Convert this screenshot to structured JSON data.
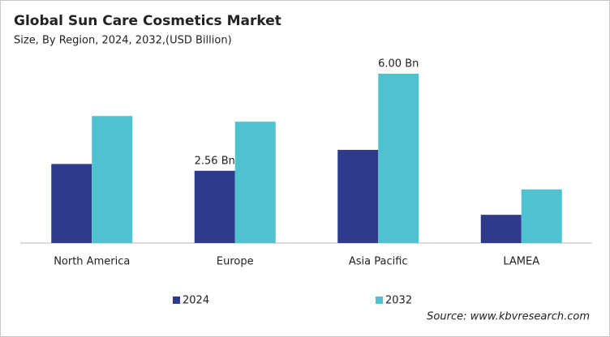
{
  "chart_data": {
    "type": "bar",
    "title": "Global Sun Care Cosmetics Market",
    "subtitle": "Size, By Region, 2024, 2032,(USD Billion)",
    "categories": [
      "North America",
      "Europe",
      "Asia Pacific",
      "LAMEA"
    ],
    "series": [
      {
        "name": "2024",
        "color": "#2e3a8c",
        "values": [
          2.8,
          2.56,
          3.3,
          1.0
        ],
        "value_labels": [
          null,
          "2.56 Bn",
          null,
          null
        ]
      },
      {
        "name": "2032",
        "color": "#4ec3cf",
        "values": [
          4.5,
          4.3,
          6.0,
          1.9
        ],
        "value_labels": [
          null,
          null,
          "6.00 Bn",
          null
        ]
      }
    ],
    "ylim": [
      0,
      6.2
    ],
    "source": "Source: www.kbvresearch.com"
  }
}
